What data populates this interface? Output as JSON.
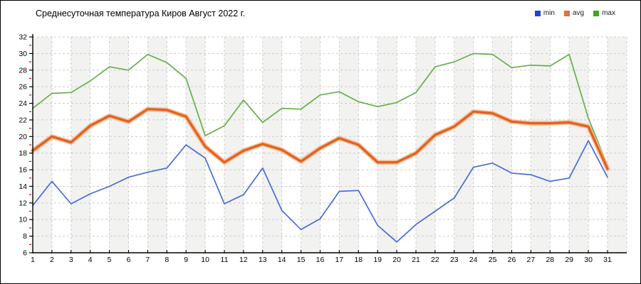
{
  "window": {
    "title": "Среднесуточная температура Киров  Август 2022 г."
  },
  "legend": {
    "position": "top-right",
    "items": [
      {
        "label": "min",
        "color": "#2342d9"
      },
      {
        "label": "avg",
        "color": "#e0703d"
      },
      {
        "label": "max",
        "color": "#3da81c"
      }
    ]
  },
  "chart_data": {
    "type": "line",
    "title": "Среднесуточная температура Киров  Август 2022 г.",
    "xlabel": "",
    "ylabel": "",
    "x": [
      1,
      2,
      3,
      4,
      5,
      6,
      7,
      8,
      9,
      10,
      11,
      12,
      13,
      14,
      15,
      16,
      17,
      18,
      19,
      20,
      21,
      22,
      23,
      24,
      25,
      26,
      27,
      28,
      29,
      30,
      31
    ],
    "x_tick_labels": [
      "1",
      "2",
      "3",
      "4",
      "5",
      "6",
      "7",
      "8",
      "9",
      "10",
      "11",
      "12",
      "13",
      "14",
      "15",
      "16",
      "17",
      "18",
      "19",
      "20",
      "21",
      "22",
      "23",
      "24",
      "25",
      "26",
      "27",
      "28",
      "29",
      "30",
      "31"
    ],
    "ylim": [
      6,
      32
    ],
    "y_ticks": [
      6,
      8,
      10,
      12,
      14,
      16,
      18,
      20,
      22,
      24,
      26,
      28,
      30,
      32
    ],
    "grid": true,
    "grid_style": "dashed",
    "background_stripes": true,
    "legend_position": "top-right",
    "series": [
      {
        "name": "min",
        "color": "#4a6bdb",
        "values": [
          11.7,
          14.6,
          11.9,
          13.1,
          14.0,
          15.1,
          15.7,
          16.2,
          19.0,
          17.4,
          11.9,
          13.0,
          16.2,
          11.1,
          8.8,
          10.1,
          13.4,
          13.5,
          9.3,
          7.3,
          9.4,
          11.0,
          12.6,
          16.3,
          16.8,
          15.6,
          15.4,
          14.6,
          15.0,
          19.5,
          15.1
        ]
      },
      {
        "name": "avg",
        "color": "#e2611c",
        "halo_color": "#f6b088",
        "values": [
          18.3,
          20.0,
          19.3,
          21.3,
          22.5,
          21.8,
          23.3,
          23.2,
          22.4,
          18.8,
          16.9,
          18.3,
          19.1,
          18.4,
          17.0,
          18.6,
          19.8,
          19.0,
          16.9,
          16.9,
          18.0,
          20.2,
          21.2,
          23.0,
          22.8,
          21.8,
          21.6,
          21.6,
          21.7,
          21.2,
          16.1
        ]
      },
      {
        "name": "max",
        "color": "#66b04b",
        "values": [
          23.4,
          25.2,
          25.3,
          26.7,
          28.4,
          28.0,
          29.9,
          28.9,
          27.0,
          20.1,
          21.3,
          24.4,
          21.7,
          23.4,
          23.3,
          25.0,
          25.4,
          24.2,
          23.6,
          24.1,
          25.3,
          28.4,
          29.0,
          30.0,
          29.9,
          28.3,
          28.6,
          28.5,
          29.9,
          22.2,
          16.5
        ]
      }
    ],
    "style": {
      "stripe_color": "#f2f2f0",
      "gridline_color": "#cccccc",
      "axis_color": "#000000",
      "minor_tick_color": "#dd0000"
    }
  }
}
